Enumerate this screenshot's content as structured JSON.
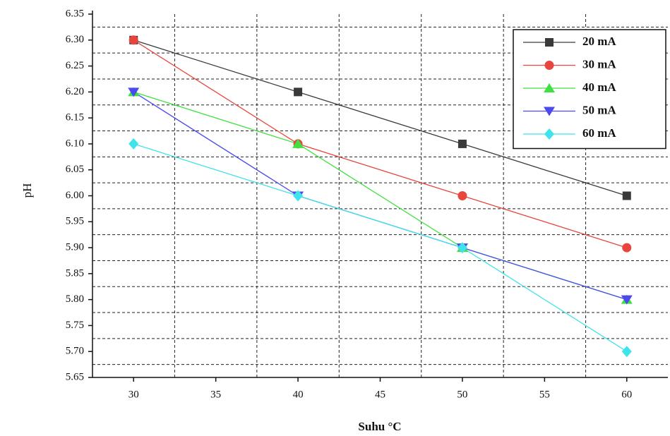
{
  "chart_data": {
    "type": "line",
    "x_label": "Suhu °C",
    "y_label": "pH",
    "x": [
      30,
      40,
      50,
      60
    ],
    "series": [
      {
        "name": "20 mA",
        "color": "#3a3a3a",
        "values": [
          6.3,
          6.2,
          6.1,
          6.0
        ]
      },
      {
        "name": "30 mA",
        "color": "#e8453c",
        "values": [
          6.3,
          6.1,
          6.0,
          5.9
        ]
      },
      {
        "name": "40 mA",
        "color": "#3fe03f",
        "values": [
          6.2,
          6.1,
          5.9,
          5.8
        ]
      },
      {
        "name": "50 mA",
        "color": "#4a4aee",
        "values": [
          6.2,
          6.0,
          5.9,
          5.8
        ]
      },
      {
        "name": "60 mA",
        "color": "#3fe3ea",
        "values": [
          6.1,
          6.0,
          5.9,
          5.7
        ]
      }
    ],
    "xlim": [
      27.5,
      62.5
    ],
    "xticks": [
      30,
      35,
      40,
      45,
      50,
      55,
      60
    ],
    "ylim": [
      5.65,
      6.35
    ],
    "yticks": [
      5.65,
      {
        "value": 5.7,
        "label": "5.70"
      },
      5.75,
      {
        "value": 5.8,
        "label": "5.80"
      },
      5.85,
      {
        "value": 5.9,
        "label": "5.90"
      },
      5.95,
      {
        "value": 6.0,
        "label": "6.00"
      },
      6.05,
      {
        "value": 6.1,
        "label": "6.10"
      },
      6.15,
      {
        "value": 6.2,
        "label": "6.20"
      },
      6.25,
      {
        "value": 6.3,
        "label": "6.30"
      },
      6.35
    ],
    "grid": true,
    "legend": "upper right"
  }
}
